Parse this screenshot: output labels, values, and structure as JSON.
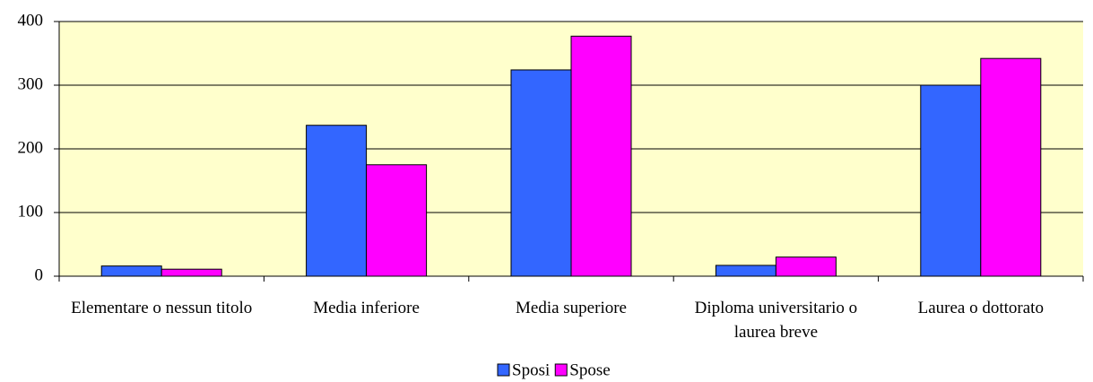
{
  "chart_data": {
    "type": "bar",
    "categories": [
      "Elementare o nessun titolo",
      "Media inferiore",
      "Media superiore",
      "Diploma universitario o laurea breve",
      "Laurea o dottorato"
    ],
    "series": [
      {
        "name": "Sposi",
        "color": "#3366ff",
        "values": [
          16,
          237,
          324,
          17,
          300
        ]
      },
      {
        "name": "Spose",
        "color": "#ff00ff",
        "values": [
          11,
          175,
          377,
          30,
          342
        ]
      }
    ],
    "ylim": [
      0,
      400
    ],
    "yticks": [
      0,
      100,
      200,
      300,
      400
    ],
    "grid": true,
    "legend": "bottom"
  }
}
